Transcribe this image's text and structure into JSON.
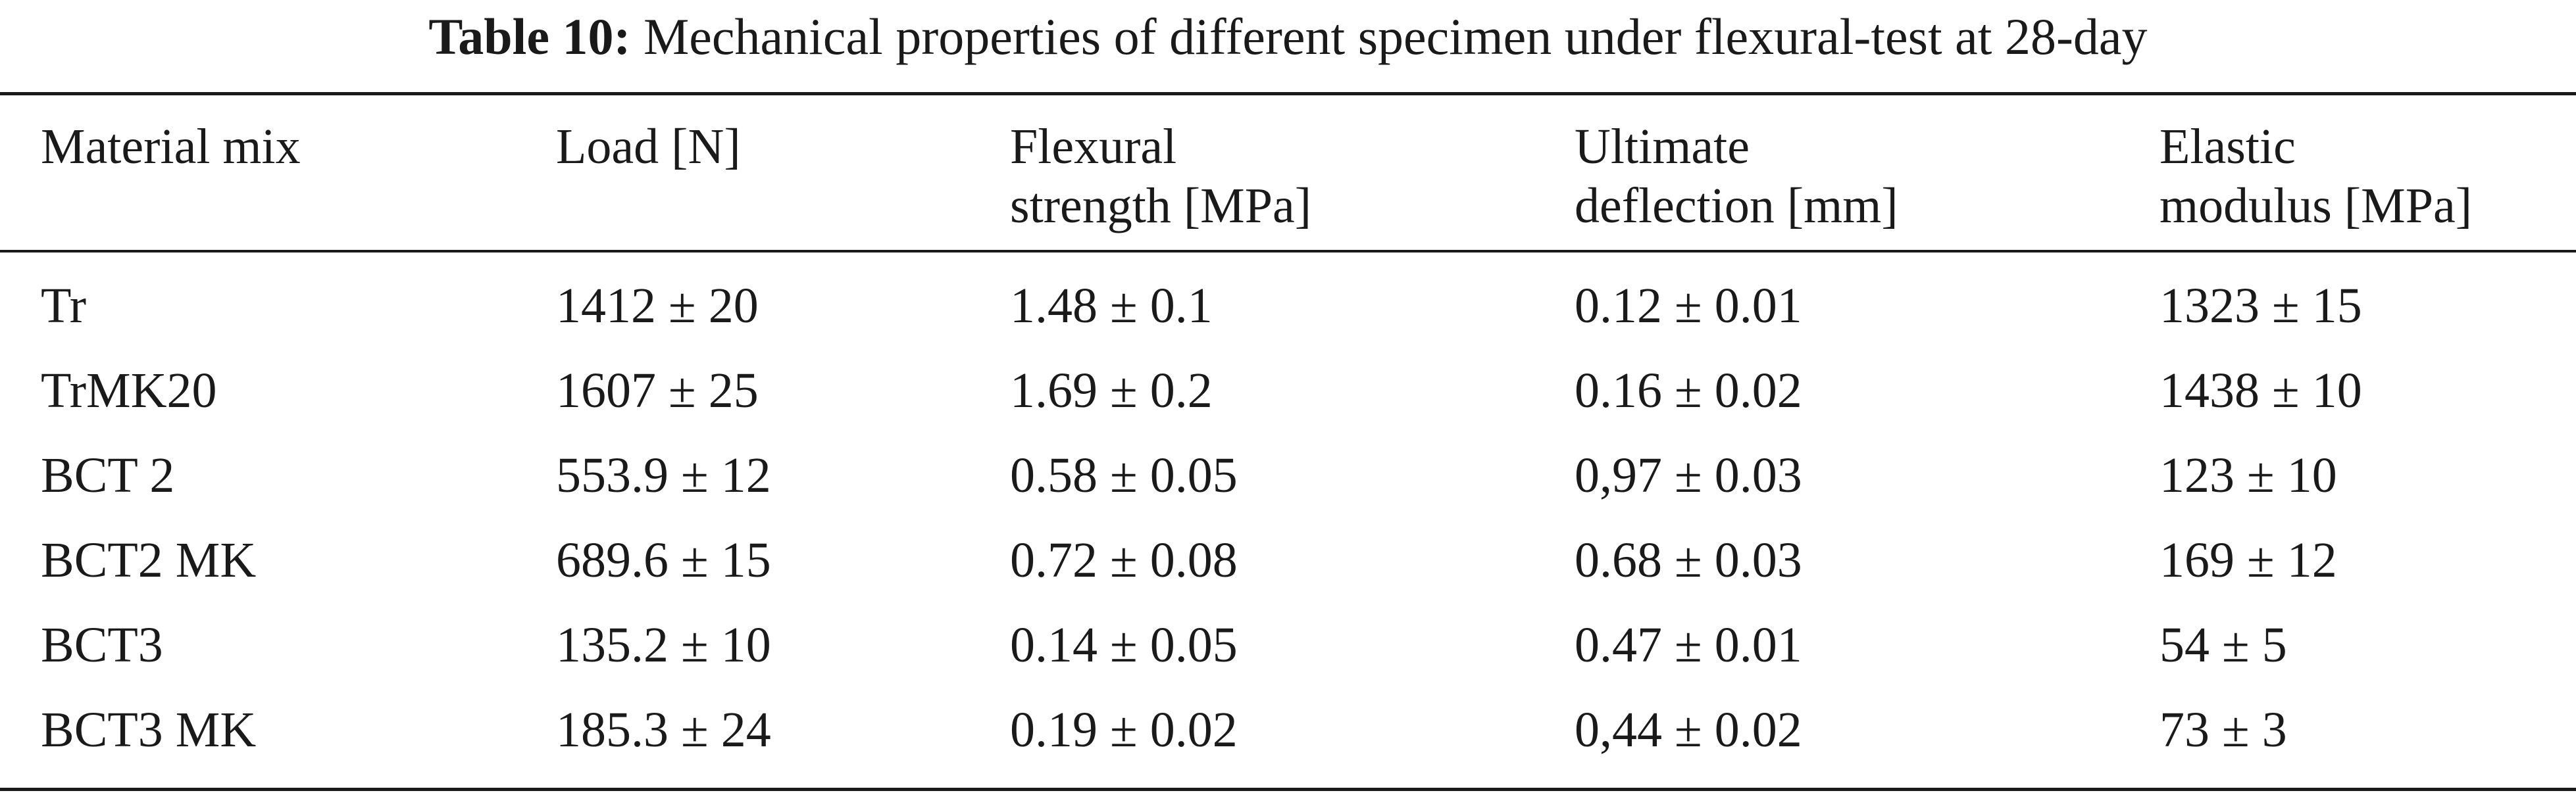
{
  "caption": {
    "label": "Table 10:",
    "text": "Mechanical properties of different specimen under flexural-test at 28-day"
  },
  "table": {
    "headers": [
      {
        "line1": "Material mix",
        "line2": ""
      },
      {
        "line1": "Load [N]",
        "line2": ""
      },
      {
        "line1": "Flexural",
        "line2": "strength [MPa]"
      },
      {
        "line1": "Ultimate",
        "line2": "deflection [mm]"
      },
      {
        "line1": "Elastic",
        "line2": "modulus [MPa]"
      }
    ],
    "rows": [
      [
        "Tr",
        "1412 ± 20",
        "1.48 ± 0.1",
        "0.12 ± 0.01",
        "1323 ± 15"
      ],
      [
        "TrMK20",
        "1607 ± 25",
        "1.69 ± 0.2",
        "0.16 ± 0.02",
        "1438 ± 10"
      ],
      [
        "BCT 2",
        "553.9 ± 12",
        "0.58 ± 0.05",
        "0,97 ± 0.03",
        "123 ± 10"
      ],
      [
        "BCT2 MK",
        "689.6 ± 15",
        "0.72 ± 0.08",
        "0.68 ± 0.03",
        "169 ± 12"
      ],
      [
        "BCT3",
        "135.2 ± 10",
        "0.14 ± 0.05",
        "0.47 ± 0.01",
        "54 ± 5"
      ],
      [
        "BCT3 MK",
        "185.3 ± 24",
        "0.19 ± 0.02",
        "0,44 ± 0.02",
        "73 ± 3"
      ]
    ]
  }
}
